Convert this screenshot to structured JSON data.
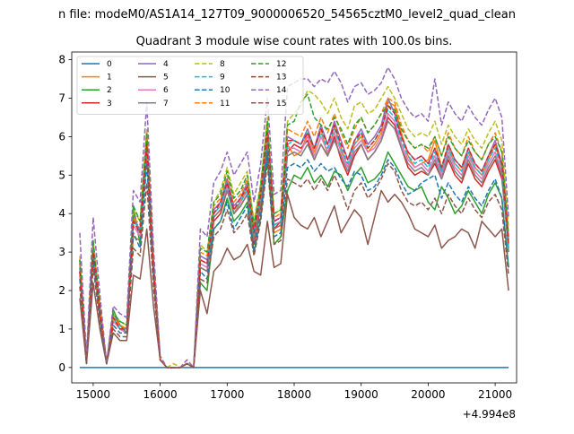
{
  "chart_data": {
    "type": "line",
    "suptitle": "n file: modeM0/AS1A14_127T09_9000006520_54565cztM0_level2_quad_clean",
    "title": "Quadrant 3 module wise count rates with 100.0s bins.",
    "xlabel": "",
    "ylabel": "",
    "x_offset_label": "+4.994e8",
    "xlim": [
      14680,
      21320
    ],
    "ylim": [
      -0.4,
      8.2
    ],
    "xticks": [
      15000,
      16000,
      17000,
      18000,
      19000,
      20000,
      21000
    ],
    "yticks": [
      0,
      1,
      2,
      3,
      4,
      5,
      6,
      7,
      8
    ],
    "grid": false,
    "legend": {
      "placement": "top-left",
      "columns": 4
    },
    "x": [
      14800,
      14900,
      15000,
      15100,
      15200,
      15300,
      15400,
      15500,
      15600,
      15700,
      15800,
      15900,
      16000,
      16100,
      16200,
      16300,
      16400,
      16500,
      16600,
      16700,
      16800,
      16900,
      17000,
      17100,
      17200,
      17300,
      17400,
      17500,
      17600,
      17700,
      17800,
      17900,
      18000,
      18100,
      18200,
      18300,
      18400,
      18500,
      18600,
      18700,
      18800,
      18900,
      19000,
      19100,
      19200,
      19300,
      19400,
      19500,
      19600,
      19700,
      19800,
      19900,
      20000,
      20100,
      20200,
      20300,
      20400,
      20500,
      20600,
      20700,
      20800,
      20900,
      21000,
      21100,
      21200
    ],
    "series": [
      {
        "name": "0",
        "color": "#1f77b4",
        "dash": "solid",
        "values": [
          0,
          0,
          0,
          0,
          0,
          0,
          0,
          0,
          0,
          0,
          0,
          0,
          0,
          0,
          0,
          0,
          0,
          0,
          0,
          0,
          0,
          0,
          0,
          0,
          0,
          0,
          0,
          0,
          0,
          0,
          0,
          0,
          0,
          0,
          0,
          0,
          0,
          0,
          0,
          0,
          0,
          0,
          0,
          0,
          0,
          0,
          0,
          0,
          0,
          0,
          0,
          0,
          0,
          0,
          0,
          0,
          0,
          0,
          0,
          0,
          0,
          0,
          0,
          0,
          0
        ]
      },
      {
        "name": "1",
        "color": "#ff7f0e",
        "dash": "solid",
        "values": [
          2.4,
          0.2,
          3.0,
          1.6,
          0.1,
          1.2,
          1.0,
          1.0,
          3.4,
          3.3,
          5.5,
          2.5,
          0.2,
          0.0,
          0.0,
          0.0,
          0.1,
          0.0,
          2.8,
          2.7,
          3.9,
          4.1,
          4.8,
          4.0,
          4.3,
          4.7,
          3.5,
          4.5,
          6.0,
          3.5,
          3.6,
          5.8,
          5.5,
          5.6,
          6.1,
          5.6,
          6.2,
          5.5,
          6.3,
          5.7,
          5.2,
          5.8,
          6.0,
          5.6,
          5.8,
          6.1,
          6.9,
          6.8,
          6.1,
          5.5,
          5.2,
          5.3,
          5.4,
          5.9,
          5.2,
          5.7,
          5.3,
          5.1,
          5.6,
          5.2,
          5.0,
          5.4,
          5.8,
          5.2,
          3.0
        ]
      },
      {
        "name": "2",
        "color": "#2ca02c",
        "dash": "solid",
        "values": [
          2.8,
          0.1,
          3.2,
          1.5,
          0.1,
          1.5,
          1.1,
          0.9,
          4.2,
          3.2,
          5.6,
          2.4,
          0.2,
          0.0,
          0.0,
          0.0,
          0.1,
          0.0,
          2.2,
          2.0,
          3.6,
          3.8,
          4.4,
          3.8,
          4.0,
          4.3,
          3.0,
          3.9,
          5.5,
          3.2,
          3.4,
          4.6,
          5.0,
          4.9,
          5.2,
          4.8,
          5.0,
          4.7,
          5.1,
          5.0,
          4.6,
          5.0,
          5.2,
          4.8,
          4.9,
          5.1,
          5.6,
          5.3,
          5.0,
          4.7,
          4.6,
          4.7,
          4.3,
          4.1,
          4.7,
          4.4,
          4.0,
          4.2,
          4.6,
          4.3,
          4.0,
          4.5,
          4.8,
          4.4,
          2.6
        ]
      },
      {
        "name": "3",
        "color": "#d62728",
        "dash": "solid",
        "values": [
          2.5,
          0.2,
          2.9,
          1.4,
          0.1,
          1.3,
          1.0,
          0.9,
          3.8,
          3.6,
          5.7,
          2.6,
          0.2,
          0.0,
          0.0,
          0.0,
          0.1,
          0.0,
          2.6,
          2.5,
          3.8,
          4.0,
          4.6,
          4.0,
          4.2,
          4.5,
          3.2,
          4.2,
          5.8,
          3.6,
          3.8,
          5.6,
          5.8,
          5.7,
          5.9,
          5.4,
          5.8,
          5.5,
          6.0,
          5.4,
          5.0,
          5.5,
          5.8,
          5.4,
          5.6,
          5.9,
          6.5,
          6.3,
          5.7,
          5.2,
          5.0,
          5.1,
          5.0,
          5.3,
          4.9,
          5.4,
          5.0,
          4.8,
          5.3,
          4.9,
          4.7,
          5.1,
          5.4,
          4.9,
          3.2
        ]
      },
      {
        "name": "4",
        "color": "#9467bd",
        "dash": "solid",
        "values": [
          2.6,
          0.2,
          3.1,
          1.5,
          0.1,
          1.3,
          1.1,
          1.0,
          4.0,
          3.5,
          5.9,
          2.7,
          0.2,
          0.0,
          0.0,
          0.0,
          0.1,
          0.0,
          2.9,
          2.8,
          4.1,
          4.3,
          4.9,
          4.2,
          4.4,
          4.8,
          3.6,
          4.6,
          6.2,
          3.8,
          3.9,
          6.0,
          5.9,
          5.8,
          6.2,
          5.7,
          6.3,
          5.8,
          6.4,
          5.9,
          5.4,
          5.9,
          6.2,
          5.8,
          6.0,
          6.3,
          7.0,
          6.6,
          6.0,
          5.6,
          5.4,
          5.5,
          5.3,
          5.7,
          5.1,
          5.8,
          5.4,
          5.2,
          5.7,
          5.3,
          5.1,
          5.5,
          5.9,
          5.3,
          3.3
        ]
      },
      {
        "name": "5",
        "color": "#8c564b",
        "dash": "solid",
        "values": [
          1.8,
          0.1,
          2.2,
          1.0,
          0.1,
          0.9,
          0.7,
          0.7,
          2.4,
          2.3,
          3.6,
          1.6,
          0.2,
          0.0,
          0.0,
          0.0,
          0.1,
          0.0,
          2.0,
          1.4,
          2.5,
          2.7,
          3.1,
          2.8,
          2.9,
          3.2,
          2.5,
          2.4,
          3.8,
          2.6,
          2.7,
          4.5,
          3.9,
          3.7,
          3.6,
          3.9,
          3.4,
          3.8,
          4.2,
          3.5,
          3.8,
          4.1,
          3.9,
          3.2,
          3.9,
          4.6,
          4.3,
          4.5,
          4.3,
          4.0,
          3.6,
          3.5,
          3.4,
          3.7,
          3.1,
          3.3,
          3.4,
          3.6,
          3.5,
          3.1,
          3.8,
          3.6,
          3.4,
          3.6,
          2.0
        ]
      },
      {
        "name": "6",
        "color": "#e377c2",
        "dash": "solid",
        "values": [
          2.5,
          0.2,
          3.0,
          1.4,
          0.1,
          1.2,
          1.0,
          0.9,
          3.7,
          3.4,
          5.8,
          2.6,
          0.2,
          0.0,
          0.0,
          0.0,
          0.1,
          0.0,
          2.7,
          2.6,
          4.0,
          4.2,
          4.7,
          4.1,
          4.3,
          4.6,
          3.4,
          4.4,
          6.0,
          3.7,
          3.8,
          5.7,
          5.7,
          5.6,
          6.0,
          5.5,
          6.0,
          5.6,
          6.1,
          5.6,
          5.2,
          5.7,
          5.9,
          5.6,
          5.7,
          6.0,
          6.6,
          6.4,
          5.8,
          5.4,
          5.2,
          5.3,
          5.1,
          5.5,
          5.0,
          5.6,
          5.2,
          5.0,
          5.5,
          5.1,
          4.9,
          5.3,
          5.6,
          5.1,
          3.1
        ]
      },
      {
        "name": "7",
        "color": "#7f7f7f",
        "dash": "solid",
        "values": [
          2.7,
          0.2,
          3.1,
          1.5,
          0.1,
          1.4,
          1.1,
          1.0,
          3.9,
          3.5,
          5.8,
          2.7,
          0.2,
          0.0,
          0.0,
          0.0,
          0.1,
          0.0,
          2.6,
          2.5,
          3.9,
          4.1,
          4.6,
          4.0,
          4.2,
          4.5,
          3.3,
          4.3,
          5.9,
          3.6,
          3.7,
          5.5,
          5.6,
          5.5,
          5.8,
          5.4,
          5.8,
          5.5,
          5.9,
          5.5,
          5.1,
          5.6,
          5.8,
          5.4,
          5.6,
          5.9,
          6.4,
          6.2,
          5.7,
          5.3,
          5.1,
          5.2,
          5.0,
          5.4,
          4.9,
          5.5,
          5.1,
          4.9,
          5.4,
          5.0,
          4.8,
          5.2,
          5.5,
          5.0,
          3.0
        ]
      },
      {
        "name": "8",
        "color": "#bcbd22",
        "dash": "dashed",
        "values": [
          2.9,
          0.2,
          3.3,
          1.6,
          0.1,
          1.4,
          1.2,
          1.1,
          4.1,
          3.8,
          6.2,
          2.8,
          0.2,
          0.0,
          0.1,
          0.0,
          0.1,
          0.0,
          3.2,
          3.0,
          4.3,
          4.6,
          5.2,
          4.5,
          4.8,
          5.1,
          3.8,
          4.8,
          6.5,
          4.0,
          4.1,
          6.4,
          6.6,
          6.8,
          7.2,
          7.1,
          6.9,
          6.6,
          7.0,
          6.5,
          6.2,
          6.8,
          6.9,
          6.6,
          6.7,
          7.0,
          7.3,
          7.0,
          6.6,
          6.2,
          6.0,
          6.1,
          6.0,
          6.4,
          5.8,
          6.3,
          6.0,
          5.8,
          6.2,
          5.9,
          5.7,
          6.1,
          6.4,
          5.9,
          3.6
        ]
      },
      {
        "name": "9",
        "color": "#17becf",
        "dash": "dashed",
        "values": [
          2.6,
          0.2,
          3.0,
          1.5,
          0.1,
          1.3,
          1.0,
          1.0,
          3.8,
          3.6,
          5.7,
          2.6,
          0.2,
          0.0,
          0.0,
          0.0,
          0.1,
          0.0,
          2.8,
          2.7,
          4.0,
          4.2,
          4.8,
          4.1,
          4.3,
          4.6,
          3.5,
          4.5,
          6.1,
          3.7,
          3.8,
          5.8,
          5.9,
          5.8,
          6.1,
          5.7,
          6.1,
          5.7,
          6.2,
          5.7,
          5.3,
          5.8,
          6.1,
          5.7,
          5.9,
          6.2,
          6.7,
          6.5,
          5.9,
          5.5,
          5.3,
          5.4,
          5.2,
          5.6,
          5.1,
          5.7,
          5.3,
          5.1,
          5.6,
          5.2,
          5.0,
          5.4,
          5.7,
          5.2,
          3.1
        ]
      },
      {
        "name": "10",
        "color": "#1f77b4",
        "dash": "dashed",
        "values": [
          2.3,
          0.1,
          2.8,
          1.3,
          0.1,
          1.1,
          0.9,
          0.9,
          3.5,
          3.1,
          5.3,
          2.4,
          0.2,
          0.0,
          0.0,
          0.0,
          0.1,
          0.0,
          2.5,
          2.3,
          3.6,
          3.8,
          4.3,
          3.6,
          3.9,
          4.2,
          3.0,
          4.0,
          5.6,
          3.4,
          3.5,
          5.2,
          5.3,
          5.2,
          5.4,
          5.1,
          5.3,
          5.1,
          5.2,
          4.9,
          4.7,
          5.1,
          5.0,
          4.6,
          4.7,
          5.0,
          5.4,
          5.2,
          4.8,
          4.5,
          4.6,
          4.8,
          4.9,
          5.0,
          4.4,
          4.8,
          4.5,
          4.3,
          4.7,
          4.4,
          4.2,
          4.6,
          4.9,
          4.4,
          2.6
        ]
      },
      {
        "name": "11",
        "color": "#ff7f0e",
        "dash": "dashed",
        "values": [
          2.7,
          0.2,
          3.2,
          1.6,
          0.1,
          1.3,
          1.1,
          1.0,
          3.9,
          3.7,
          6.0,
          2.7,
          0.2,
          0.0,
          0.0,
          0.0,
          0.1,
          0.0,
          3.0,
          2.9,
          4.2,
          4.4,
          5.0,
          4.3,
          4.5,
          4.9,
          3.7,
          4.6,
          6.3,
          3.9,
          4.0,
          6.2,
          6.1,
          6.0,
          6.4,
          6.0,
          6.5,
          6.1,
          6.6,
          6.1,
          5.7,
          6.2,
          6.5,
          6.1,
          6.3,
          6.6,
          7.0,
          6.9,
          6.3,
          5.9,
          5.7,
          5.8,
          5.6,
          6.0,
          5.5,
          6.1,
          5.7,
          5.5,
          6.0,
          5.6,
          5.4,
          5.8,
          6.1,
          5.6,
          3.4
        ]
      },
      {
        "name": "12",
        "color": "#2ca02c",
        "dash": "dashed",
        "values": [
          2.8,
          0.2,
          3.3,
          1.6,
          0.1,
          1.4,
          1.2,
          1.1,
          4.2,
          3.8,
          6.1,
          2.8,
          0.2,
          0.0,
          0.0,
          0.0,
          0.1,
          0.0,
          3.1,
          3.0,
          4.3,
          4.5,
          5.1,
          4.4,
          4.6,
          5.0,
          3.7,
          4.7,
          6.4,
          4.0,
          4.1,
          6.3,
          6.4,
          6.9,
          7.1,
          6.5,
          6.3,
          6.2,
          6.5,
          6.2,
          5.8,
          6.3,
          6.5,
          6.1,
          6.3,
          6.6,
          6.8,
          6.7,
          6.2,
          5.9,
          5.7,
          5.8,
          5.7,
          6.0,
          5.5,
          6.0,
          5.7,
          5.5,
          5.9,
          5.6,
          5.4,
          5.8,
          6.0,
          5.6,
          3.4
        ]
      },
      {
        "name": "13",
        "color": "#d62728",
        "dash": "dashed",
        "values": [
          2.5,
          0.2,
          3.0,
          1.5,
          0.1,
          1.3,
          1.0,
          1.0,
          3.8,
          3.5,
          5.8,
          2.6,
          0.2,
          0.0,
          0.0,
          0.0,
          0.1,
          0.0,
          2.8,
          2.7,
          4.0,
          4.3,
          4.8,
          4.1,
          4.4,
          4.7,
          3.5,
          4.5,
          6.1,
          3.8,
          3.9,
          5.9,
          5.9,
          5.8,
          6.1,
          5.7,
          6.2,
          5.8,
          6.3,
          5.8,
          5.4,
          5.9,
          6.1,
          5.7,
          5.9,
          6.2,
          6.8,
          6.6,
          6.0,
          5.6,
          5.4,
          5.5,
          5.3,
          5.7,
          5.2,
          5.8,
          5.4,
          5.2,
          5.7,
          5.3,
          5.1,
          5.5,
          5.8,
          5.3,
          3.2
        ]
      },
      {
        "name": "14",
        "color": "#9467bd",
        "dash": "dashed",
        "values": [
          3.5,
          0.3,
          3.9,
          1.9,
          0.1,
          1.6,
          1.4,
          1.3,
          4.6,
          4.3,
          6.9,
          3.1,
          0.3,
          0.0,
          0.0,
          0.0,
          0.2,
          0.0,
          3.6,
          3.4,
          4.8,
          5.1,
          5.6,
          5.0,
          5.3,
          5.6,
          4.3,
          5.3,
          7.0,
          4.5,
          4.6,
          7.3,
          7.4,
          7.5,
          7.5,
          7.3,
          7.5,
          7.4,
          7.7,
          7.4,
          6.9,
          7.3,
          7.4,
          7.1,
          7.2,
          7.4,
          7.8,
          7.5,
          7.0,
          6.7,
          6.5,
          6.6,
          6.4,
          7.5,
          6.3,
          6.9,
          6.6,
          6.4,
          6.8,
          6.5,
          6.3,
          6.7,
          7.0,
          6.5,
          3.9
        ]
      },
      {
        "name": "15",
        "color": "#8c564b",
        "dash": "dashed",
        "values": [
          2.1,
          0.1,
          2.6,
          1.2,
          0.1,
          1.0,
          0.8,
          0.8,
          3.1,
          2.9,
          4.8,
          2.1,
          0.2,
          0.0,
          0.0,
          0.0,
          0.1,
          0.0,
          2.3,
          2.2,
          3.4,
          3.6,
          4.1,
          3.5,
          3.7,
          4.0,
          2.9,
          3.8,
          5.3,
          3.2,
          3.3,
          4.9,
          4.8,
          4.7,
          4.9,
          4.6,
          4.9,
          4.6,
          5.0,
          4.6,
          4.1,
          4.6,
          4.8,
          4.4,
          4.6,
          4.9,
          5.3,
          5.1,
          4.6,
          4.3,
          4.2,
          4.3,
          4.1,
          4.4,
          4.0,
          4.5,
          4.2,
          4.0,
          4.4,
          4.1,
          3.9,
          4.3,
          4.5,
          4.1,
          2.4
        ]
      }
    ]
  }
}
